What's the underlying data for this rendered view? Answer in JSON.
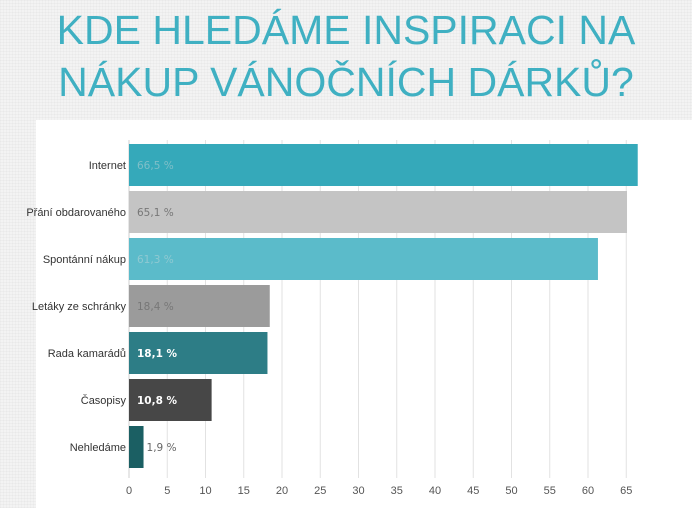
{
  "title": {
    "line1": "KDE HLEDÁME INSPIRACI NA",
    "line2": "NÁKUP VÁNOČNÍCH DÁRKŮ?"
  },
  "chart_data": {
    "type": "bar",
    "orientation": "horizontal",
    "title": "KDE HLEDÁME INSPIRACI NA NÁKUP VÁNOČNÍCH DÁRKŮ?",
    "categories": [
      "Internet",
      "Přání obdarovaného",
      "Spontánní nákup",
      "Letáky ze schránky",
      "Rada kamarádů",
      "Časopisy",
      "Nehledáme"
    ],
    "values": [
      66.5,
      65.1,
      61.3,
      18.4,
      18.1,
      10.8,
      1.9
    ],
    "labels": [
      "66,5 %",
      "65,1 %",
      "61,3 %",
      "18,4 %",
      "18,1 %",
      "10,8 %",
      "1,9 %"
    ],
    "colors": [
      "#35a9ba",
      "#c4c4c4",
      "#5bbbca",
      "#9b9b9b",
      "#2d7d86",
      "#474747",
      "#1b5f63"
    ],
    "label_colors": [
      "#7fbfc8",
      "#777777",
      "#8fc9d2",
      "#777777",
      "#ffffff",
      "#ffffff",
      "#666666"
    ],
    "label_bold": [
      false,
      false,
      false,
      false,
      true,
      true,
      false
    ],
    "xticks": [
      "0",
      "5",
      "10",
      "15",
      "20",
      "25",
      "30",
      "35",
      "40",
      "45",
      "50",
      "55",
      "60",
      "65"
    ],
    "xlim": [
      0,
      68
    ],
    "xlabel": "",
    "ylabel": "",
    "grid": true,
    "legend": "none"
  }
}
